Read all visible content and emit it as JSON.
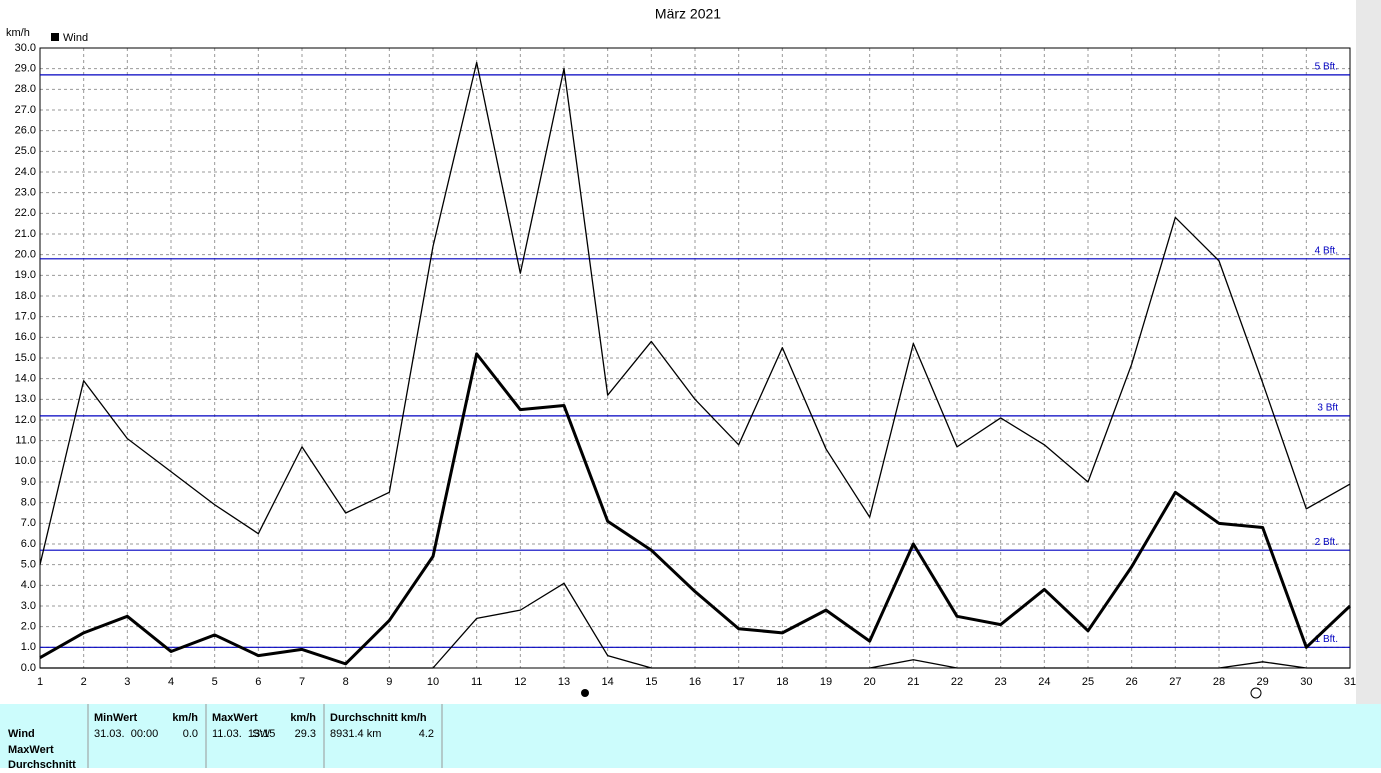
{
  "chart_data": {
    "type": "line",
    "title": "März 2021",
    "y_unit": "km/h",
    "legend": "Wind",
    "x": [
      1,
      2,
      3,
      4,
      5,
      6,
      7,
      8,
      9,
      10,
      11,
      12,
      13,
      14,
      15,
      16,
      17,
      18,
      19,
      20,
      21,
      22,
      23,
      24,
      25,
      26,
      27,
      28,
      29,
      30,
      31
    ],
    "xlim": [
      1,
      31
    ],
    "xticks": [
      1,
      2,
      3,
      4,
      5,
      6,
      7,
      8,
      9,
      10,
      11,
      12,
      13,
      14,
      15,
      16,
      17,
      18,
      19,
      20,
      21,
      22,
      23,
      24,
      25,
      26,
      27,
      28,
      29,
      30,
      31
    ],
    "ylim": [
      0,
      30
    ],
    "yticks": [
      {
        "value": 0,
        "label": "0.0"
      },
      {
        "value": 1,
        "label": "1.0"
      },
      {
        "value": 2,
        "label": "2.0"
      },
      {
        "value": 3,
        "label": "3.0"
      },
      {
        "value": 4,
        "label": "4.0"
      },
      {
        "value": 5,
        "label": "5.0"
      },
      {
        "value": 6,
        "label": "6.0"
      },
      {
        "value": 7,
        "label": "7.0"
      },
      {
        "value": 8,
        "label": "8.0"
      },
      {
        "value": 9,
        "label": "9.0"
      },
      {
        "value": 10,
        "label": "10.0"
      },
      {
        "value": 11,
        "label": "11.0"
      },
      {
        "value": 12,
        "label": "12.0"
      },
      {
        "value": 13,
        "label": "13.0"
      },
      {
        "value": 14,
        "label": "14.0"
      },
      {
        "value": 15,
        "label": "15.0"
      },
      {
        "value": 16,
        "label": "16.0"
      },
      {
        "value": 17,
        "label": "17.0"
      },
      {
        "value": 18,
        "label": "18.0"
      },
      {
        "value": 19,
        "label": "19.0"
      },
      {
        "value": 20,
        "label": "20.0"
      },
      {
        "value": 21,
        "label": "21.0"
      },
      {
        "value": 22,
        "label": "22.0"
      },
      {
        "value": 23,
        "label": "23.0"
      },
      {
        "value": 24,
        "label": "24.0"
      },
      {
        "value": 25,
        "label": "25.0"
      },
      {
        "value": 26,
        "label": "26.0"
      },
      {
        "value": 27,
        "label": "27.0"
      },
      {
        "value": 28,
        "label": "28.0"
      },
      {
        "value": 29,
        "label": "29.0"
      },
      {
        "value": 30,
        "label": "30.0"
      }
    ],
    "grid": true,
    "series": [
      {
        "color": "#000000",
        "width": 1.3,
        "values": [
          5.0,
          13.9,
          11.1,
          9.5,
          7.9,
          6.5,
          10.7,
          7.5,
          8.5,
          20.4,
          29.3,
          19.1,
          29.0,
          13.2,
          15.8,
          13.0,
          10.8,
          15.5,
          10.6,
          7.3,
          15.7,
          10.7,
          12.1,
          10.8,
          9.0,
          14.7,
          21.8,
          19.7,
          13.8,
          7.7,
          8.9
        ]
      },
      {
        "color": "#000000",
        "width": 3,
        "values": [
          0.5,
          1.7,
          2.5,
          0.8,
          1.6,
          0.6,
          0.9,
          0.2,
          2.3,
          5.4,
          15.2,
          12.5,
          12.7,
          7.1,
          5.7,
          3.7,
          1.9,
          1.7,
          2.8,
          1.3,
          6.0,
          2.5,
          2.1,
          3.8,
          1.8,
          4.9,
          8.5,
          7.0,
          6.8,
          1.0,
          3.0
        ]
      },
      {
        "color": "#000000",
        "width": 1.3,
        "values": [
          0,
          0,
          0,
          0,
          0,
          0,
          0,
          0,
          0,
          0,
          2.4,
          2.8,
          4.1,
          0.6,
          0,
          0,
          0,
          0,
          0,
          0,
          0.4,
          0,
          0,
          0,
          0,
          0,
          0,
          0,
          0.3,
          0,
          0
        ]
      }
    ],
    "reference_lines": [
      {
        "value": 1.0,
        "label": "1 Bft."
      },
      {
        "value": 5.7,
        "label": "2 Bft."
      },
      {
        "value": 12.2,
        "label": "3 Bft"
      },
      {
        "value": 19.8,
        "label": "4 Bft."
      },
      {
        "value": 28.7,
        "label": "5 Bft."
      }
    ],
    "reference_color": "#0000c0"
  },
  "stats": {
    "headers": [
      "MinWert",
      "km/h",
      "MaxWert",
      "km/h",
      "Durchschnitt km/h"
    ],
    "row_labels": [
      "Wind",
      "MaxWert",
      "Durchschnitt"
    ],
    "row": [
      "31.03.  00:00",
      "0.0",
      "11.03.  13:15",
      "SW",
      "29.3",
      "8931.4 km",
      "4.2"
    ]
  }
}
